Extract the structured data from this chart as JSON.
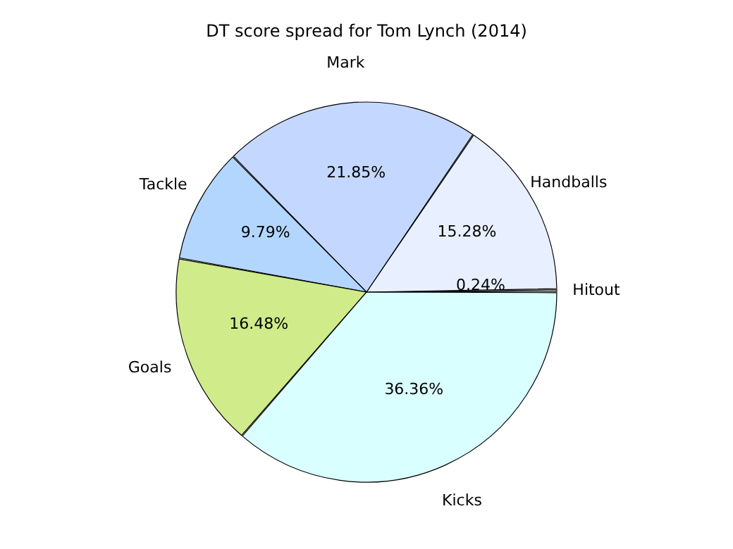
{
  "chart_data": {
    "type": "pie",
    "title": "DT score spread for Tom Lynch (2014)",
    "categories": [
      "Hitout",
      "Handballs",
      "Mark",
      "Tackle",
      "Goals",
      "Kicks"
    ],
    "values": [
      0.24,
      15.28,
      21.85,
      9.79,
      16.48,
      36.36
    ],
    "value_labels": [
      "0.24%",
      "15.28%",
      "21.85%",
      "9.79%",
      "16.48%",
      "36.36%"
    ],
    "colors": [
      "#d8d8d8",
      "#e8f0ff",
      "#c4d8ff",
      "#b3d6ff",
      "#cfeb8a",
      "#d9ffff"
    ],
    "legend": false
  }
}
